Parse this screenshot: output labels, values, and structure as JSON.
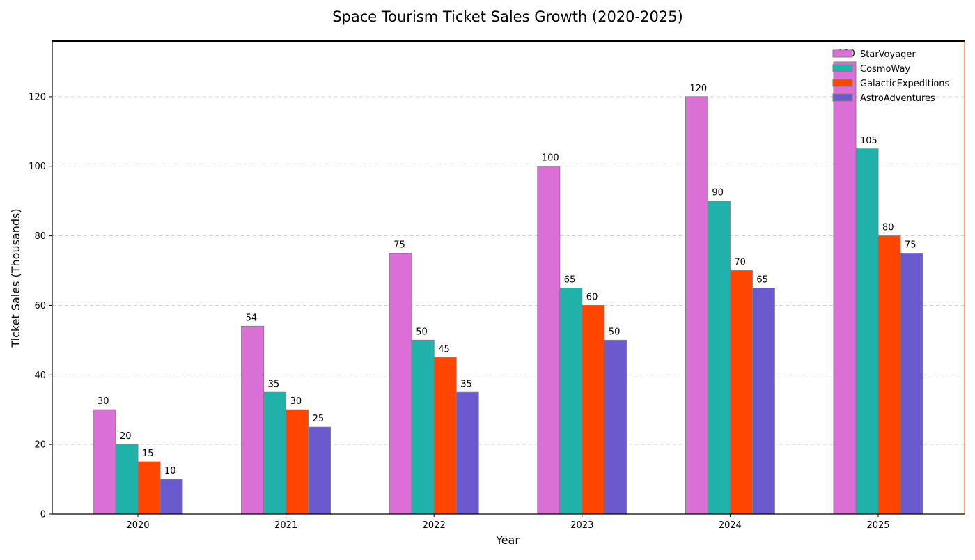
{
  "chart_data": {
    "type": "bar",
    "title": "Space Tourism Ticket Sales Growth (2020-2025)",
    "xlabel": "Year",
    "ylabel": "Ticket Sales (Thousands)",
    "categories": [
      "2020",
      "2021",
      "2022",
      "2023",
      "2024",
      "2025"
    ],
    "ylim": [
      0,
      136
    ],
    "yticks": [
      0,
      20,
      40,
      60,
      80,
      100,
      120
    ],
    "grid": "y, dashed",
    "legend_position": "top-right",
    "series": [
      {
        "name": "StarVoyager",
        "color": "#DA70D6",
        "values": [
          30,
          54,
          75,
          100,
          120,
          130
        ]
      },
      {
        "name": "CosmoWay",
        "color": "#20B2AA",
        "values": [
          20,
          35,
          50,
          65,
          90,
          105
        ]
      },
      {
        "name": "GalacticExpeditions",
        "color": "#FF4500",
        "values": [
          15,
          30,
          45,
          60,
          70,
          80
        ]
      },
      {
        "name": "AstroAdventures",
        "color": "#6A5ACD",
        "values": [
          10,
          25,
          35,
          50,
          65,
          75
        ]
      }
    ]
  }
}
